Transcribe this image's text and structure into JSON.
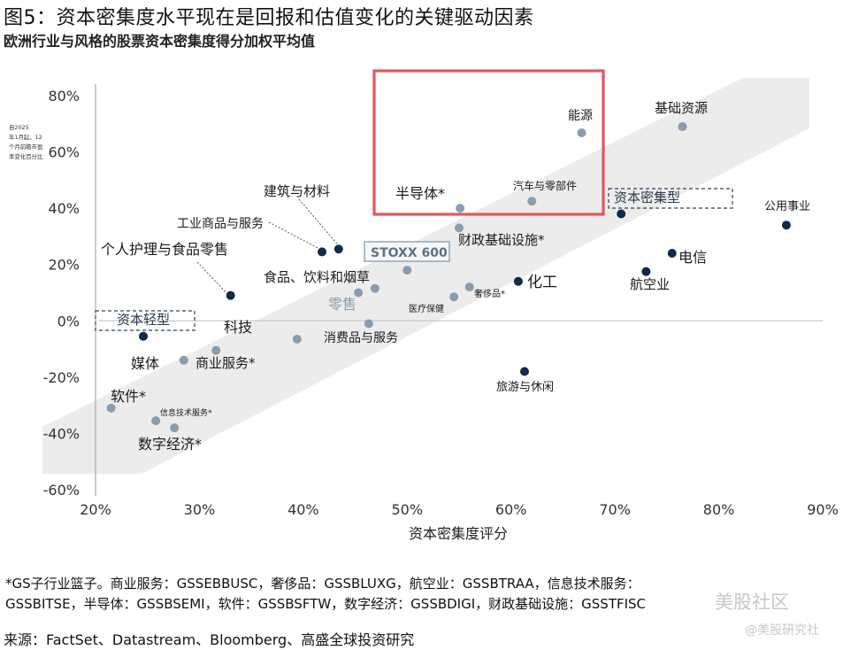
{
  "header": {
    "title": "图5：资本密集度水平现在是回报和估值变化的关键驱动因素",
    "subtitle": "欧洲行业与风格的股票资本密集度得分加权平均值"
  },
  "chart_data": {
    "type": "scatter",
    "title": "",
    "xlabel": "资本密集度评分",
    "ylabel": "自2025年1月起，12个月前瞻市盈率变化百分比",
    "xlim": [
      0.2,
      0.9
    ],
    "ylim": [
      -0.6,
      0.8
    ],
    "x_ticks": [
      0.2,
      0.3,
      0.4,
      0.5,
      0.6,
      0.7,
      0.8,
      0.9
    ],
    "y_ticks": [
      -0.6,
      -0.4,
      -0.2,
      0.0,
      0.2,
      0.4,
      0.6,
      0.8
    ],
    "x_tick_labels": [
      "20%",
      "30%",
      "40%",
      "50%",
      "60%",
      "70%",
      "80%",
      "90%"
    ],
    "y_tick_labels": [
      "-60%",
      "-40%",
      "-20%",
      "0%",
      "20%",
      "40%",
      "60%",
      "80%"
    ],
    "grid": false,
    "band_text": {
      "light": "资本轻型",
      "heavy": "资本密集型"
    },
    "highlight_color": "#e8535a",
    "colors": {
      "style": "#0f2a4a",
      "sector": "#8a9cae",
      "band": "#ececec"
    },
    "points": [
      {
        "label": "能源",
        "x": 0.668,
        "y": 0.668,
        "kind": "sector"
      },
      {
        "label": "基础资源",
        "x": 0.765,
        "y": 0.69,
        "kind": "sector"
      },
      {
        "label": "汽车与零部件",
        "x": 0.62,
        "y": 0.425,
        "kind": "sector"
      },
      {
        "label": "半导体*",
        "x": 0.551,
        "y": 0.4,
        "kind": "sector"
      },
      {
        "label": "财政基础设施*",
        "x": 0.55,
        "y": 0.33,
        "kind": "sector"
      },
      {
        "label": "资本密集型",
        "x": 0.706,
        "y": 0.38,
        "kind": "style"
      },
      {
        "label": "公用事业",
        "x": 0.865,
        "y": 0.34,
        "kind": "style"
      },
      {
        "label": "电信",
        "x": 0.755,
        "y": 0.24,
        "kind": "style"
      },
      {
        "label": "航空业",
        "x": 0.73,
        "y": 0.175,
        "kind": "style"
      },
      {
        "label": "化工",
        "x": 0.607,
        "y": 0.14,
        "kind": "style"
      },
      {
        "label": "建筑与材料",
        "x": 0.434,
        "y": 0.255,
        "kind": "style"
      },
      {
        "label": "工业商品与服务",
        "x": 0.418,
        "y": 0.245,
        "kind": "style"
      },
      {
        "label": "STOXX 600",
        "x": 0.5,
        "y": 0.18,
        "kind": "sector"
      },
      {
        "label": "个人护理与食品零售",
        "x": 0.33,
        "y": 0.09,
        "kind": "style"
      },
      {
        "label": "食品、饮料和烟草",
        "x": 0.469,
        "y": 0.115,
        "kind": "sector"
      },
      {
        "label": "零售",
        "x": 0.453,
        "y": 0.1,
        "kind": "sector"
      },
      {
        "label": "奢侈品*",
        "x": 0.56,
        "y": 0.12,
        "kind": "sector"
      },
      {
        "label": "医疗保健",
        "x": 0.545,
        "y": 0.085,
        "kind": "sector"
      },
      {
        "label": "消费品与服务",
        "x": 0.463,
        "y": -0.01,
        "kind": "sector"
      },
      {
        "label": "科技",
        "x": 0.394,
        "y": -0.065,
        "kind": "sector"
      },
      {
        "label": "资本轻型",
        "x": 0.246,
        "y": -0.055,
        "kind": "style"
      },
      {
        "label": "媒体",
        "x": 0.285,
        "y": -0.14,
        "kind": "sector"
      },
      {
        "label": "商业服务*",
        "x": 0.316,
        "y": -0.105,
        "kind": "sector"
      },
      {
        "label": "旅游与休闲",
        "x": 0.613,
        "y": -0.18,
        "kind": "style"
      },
      {
        "label": "软件*",
        "x": 0.215,
        "y": -0.31,
        "kind": "sector"
      },
      {
        "label": "信息技术服务*",
        "x": 0.258,
        "y": -0.355,
        "kind": "sector"
      },
      {
        "label": "数字经济*",
        "x": 0.276,
        "y": -0.38,
        "kind": "sector"
      }
    ]
  },
  "footnote": {
    "line1": "*GS子行业篮子。商业服务：GSSEBBUSC，奢侈品：GSSBLUXG，航空业：GSSBTRAA，信息技术服务：",
    "line2": "GSSBITSE，半导体：GSSBSEMI，软件：GSSBSFTW，数字经济：GSSBDIGI，财政基础设施：GSSTFISC"
  },
  "source": "来源：FactSet、Datastream、Bloomberg、高盛全球投资研究",
  "watermark": {
    "line1": "美股社区",
    "line2": "@美股研究社"
  }
}
